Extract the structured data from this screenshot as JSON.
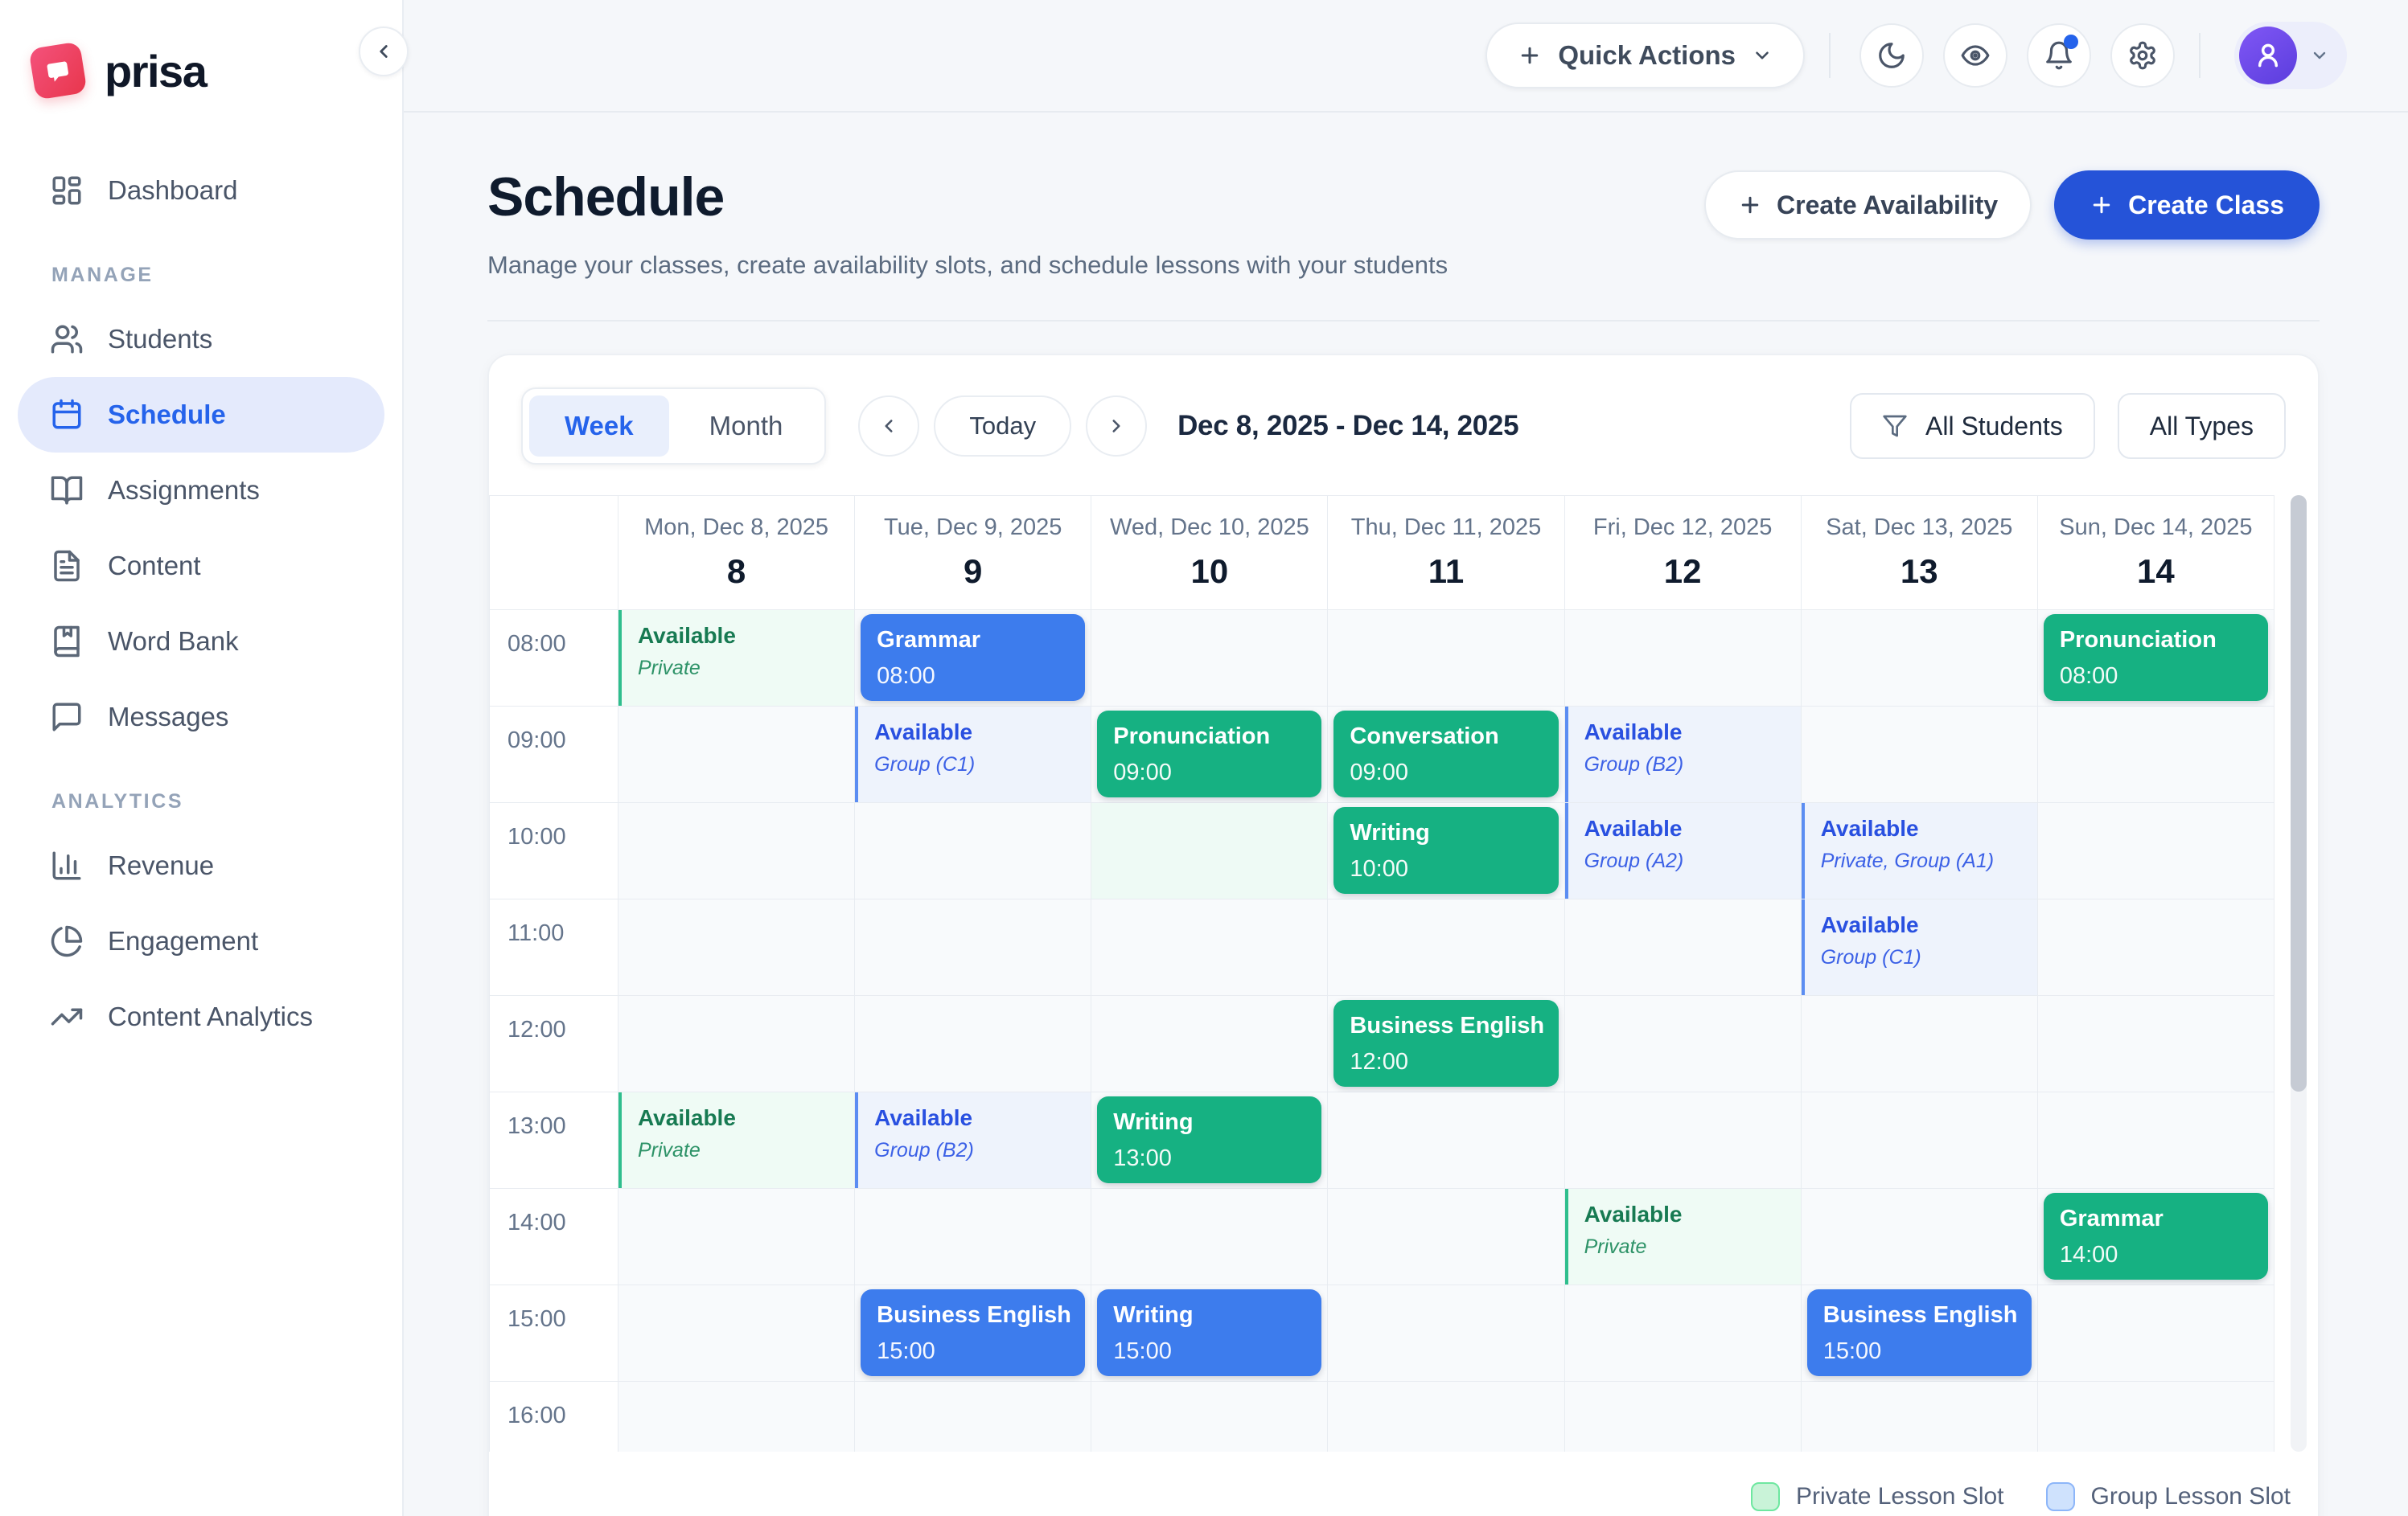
{
  "brand": {
    "name": "prisa"
  },
  "sidebar": {
    "dashboard": "Dashboard",
    "sections": [
      {
        "label": "MANAGE",
        "items": [
          {
            "label": "Students"
          },
          {
            "label": "Schedule",
            "active": true
          },
          {
            "label": "Assignments"
          },
          {
            "label": "Content"
          },
          {
            "label": "Word Bank"
          },
          {
            "label": "Messages"
          }
        ]
      },
      {
        "label": "ANALYTICS",
        "items": [
          {
            "label": "Revenue"
          },
          {
            "label": "Engagement"
          },
          {
            "label": "Content Analytics"
          }
        ]
      }
    ]
  },
  "topbar": {
    "quick_actions": "Quick Actions"
  },
  "page": {
    "title": "Schedule",
    "subtitle": "Manage your classes, create availability slots, and schedule lessons with your students",
    "create_availability": "Create Availability",
    "create_class": "Create Class"
  },
  "toolbar": {
    "week": "Week",
    "month": "Month",
    "today": "Today",
    "range": "Dec 8, 2025 - Dec 14, 2025",
    "filter_students": "All Students",
    "filter_types": "All Types"
  },
  "calendar": {
    "times": [
      "08:00",
      "09:00",
      "10:00",
      "11:00",
      "12:00",
      "13:00",
      "14:00",
      "15:00",
      "16:00"
    ],
    "days": [
      {
        "label": "Mon, Dec 8, 2025",
        "num": "8"
      },
      {
        "label": "Tue, Dec 9, 2025",
        "num": "9"
      },
      {
        "label": "Wed, Dec 10, 2025",
        "num": "10"
      },
      {
        "label": "Thu, Dec 11, 2025",
        "num": "11"
      },
      {
        "label": "Fri, Dec 12, 2025",
        "num": "12"
      },
      {
        "label": "Sat, Dec 13, 2025",
        "num": "13"
      },
      {
        "label": "Sun, Dec 14, 2025",
        "num": "14"
      }
    ],
    "entries": [
      {
        "day": 0,
        "row": 0,
        "kind": "slot-green",
        "title": "Available",
        "subtitle": "Private"
      },
      {
        "day": 0,
        "row": 5,
        "kind": "slot-green",
        "title": "Available",
        "subtitle": "Private"
      },
      {
        "day": 1,
        "row": 0,
        "kind": "ev-blue",
        "title": "Grammar",
        "time": "08:00"
      },
      {
        "day": 1,
        "row": 1,
        "kind": "slot-blue",
        "title": "Available",
        "subtitle": "Group (C1)"
      },
      {
        "day": 1,
        "row": 5,
        "kind": "slot-blue",
        "title": "Available",
        "subtitle": "Group (B2)"
      },
      {
        "day": 1,
        "row": 7,
        "kind": "ev-blue",
        "title": "Business English",
        "time": "15:00"
      },
      {
        "day": 2,
        "row": 1,
        "kind": "ev-green",
        "title": "Pronunciation",
        "time": "09:00"
      },
      {
        "day": 2,
        "row": 2,
        "kind": "slot-cont",
        "title": "",
        "subtitle": ""
      },
      {
        "day": 2,
        "row": 5,
        "kind": "ev-green",
        "title": "Writing",
        "time": "13:00"
      },
      {
        "day": 2,
        "row": 7,
        "kind": "ev-blue",
        "title": "Writing",
        "time": "15:00"
      },
      {
        "day": 3,
        "row": 1,
        "kind": "ev-green",
        "title": "Conversation",
        "time": "09:00"
      },
      {
        "day": 3,
        "row": 2,
        "kind": "ev-green",
        "title": "Writing",
        "time": "10:00"
      },
      {
        "day": 3,
        "row": 4,
        "kind": "ev-green",
        "title": "Business English",
        "time": "12:00"
      },
      {
        "day": 4,
        "row": 1,
        "kind": "slot-blue",
        "title": "Available",
        "subtitle": "Group (B2)"
      },
      {
        "day": 4,
        "row": 2,
        "kind": "slot-blue",
        "title": "Available",
        "subtitle": "Group (A2)"
      },
      {
        "day": 4,
        "row": 6,
        "kind": "slot-green",
        "title": "Available",
        "subtitle": "Private"
      },
      {
        "day": 5,
        "row": 2,
        "kind": "slot-blue",
        "title": "Available",
        "subtitle": "Private, Group (A1)"
      },
      {
        "day": 5,
        "row": 3,
        "kind": "slot-blue",
        "title": "Available",
        "subtitle": "Group (C1)"
      },
      {
        "day": 5,
        "row": 7,
        "kind": "ev-blue",
        "title": "Business English",
        "time": "15:00"
      },
      {
        "day": 6,
        "row": 0,
        "kind": "ev-green",
        "title": "Pronunciation",
        "time": "08:00"
      },
      {
        "day": 6,
        "row": 6,
        "kind": "ev-green",
        "title": "Grammar",
        "time": "14:00"
      }
    ]
  },
  "legend": [
    {
      "label": "Private Lesson Slot",
      "color": "#c9f3d8"
    },
    {
      "label": "Group Lesson Slot",
      "color": "#cfe2fd"
    }
  ],
  "colors": {
    "accent_blue": "#2563eb",
    "primary_button": "#2553d8",
    "event_green": "#16b182",
    "event_blue": "#3d7ced",
    "brand_red": "#e8364c",
    "avatar_purple": "#6b4de9"
  }
}
